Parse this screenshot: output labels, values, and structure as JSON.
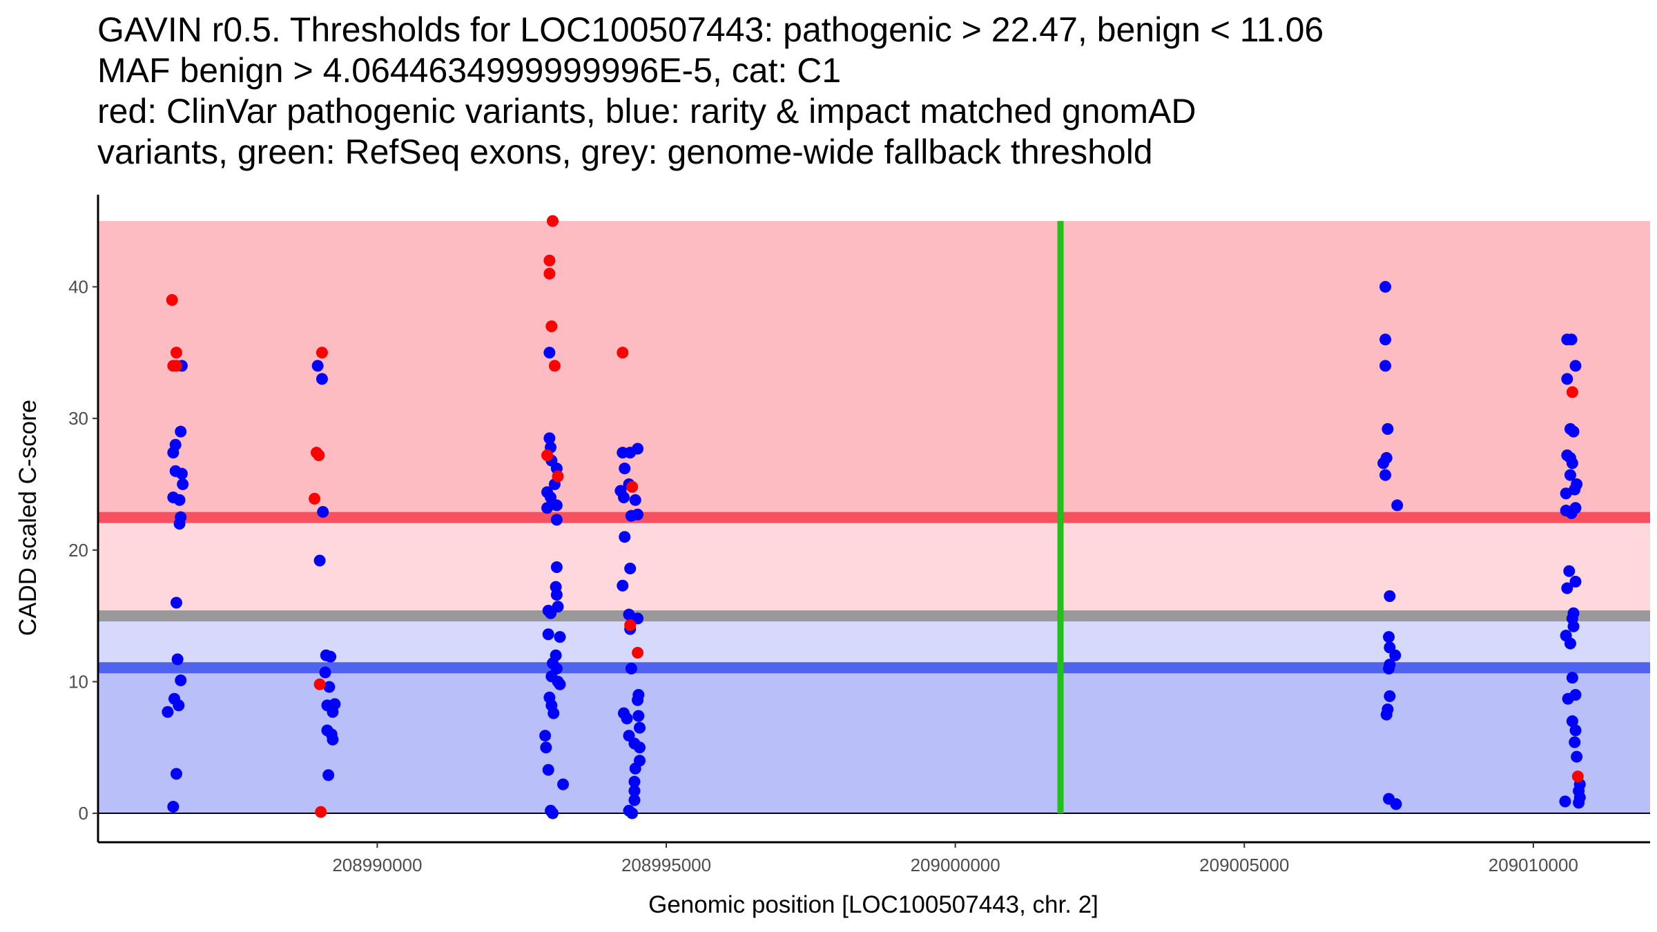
{
  "chart_data": {
    "type": "scatter",
    "title_lines": [
      "GAVIN r0.5. Thresholds for LOC100507443: pathogenic > 22.47, benign < 11.06",
      "MAF benign > 4.0644634999999996E-5, cat: C1",
      "red: ClinVar pathogenic variants, blue: rarity & impact matched gnomAD",
      "variants, green: RefSeq exons, grey: genome-wide fallback threshold"
    ],
    "xlabel": "Genomic position [LOC100507443, chr. 2]",
    "ylabel": "CADD scaled C-score",
    "xlim": [
      208985170,
      209012020
    ],
    "ylim": [
      -2.2,
      47
    ],
    "xticks": [
      208990000,
      208995000,
      209000000,
      209005000,
      209010000
    ],
    "xtick_labels": [
      "208990000",
      "208995000",
      "209000000",
      "209005000",
      "209010000"
    ],
    "yticks": [
      0,
      10,
      20,
      30,
      40
    ],
    "ytick_labels": [
      "0",
      "10",
      "20",
      "30",
      "40"
    ],
    "thresholds": {
      "pathogenic": 22.47,
      "benign": 11.06,
      "genome_wide": 15,
      "max": 45
    },
    "exon_positions": [
      209001820
    ],
    "colors": {
      "pathogenic_band": "#fcbcc1",
      "mid_pathogenic_band": "#fed8dc",
      "mid_benign_band": "#d6d9fc",
      "benign_band": "#b9bff9",
      "pathogenic_line": "#f6515f",
      "benign_line": "#4f63ee",
      "genome_line": "#999999",
      "exon": "#22c01a",
      "clinvar": "#ff0000",
      "gnomad": "#0000ff"
    },
    "series": [
      {
        "name": "gnomAD",
        "color": "#0000ff",
        "points": [
          [
            208986620,
            34
          ],
          [
            208986600,
            29
          ],
          [
            208986510,
            28
          ],
          [
            208986470,
            27.4
          ],
          [
            208986510,
            26
          ],
          [
            208986620,
            25.8
          ],
          [
            208986635,
            25
          ],
          [
            208986470,
            24
          ],
          [
            208986580,
            23.8
          ],
          [
            208986600,
            22.5
          ],
          [
            208986580,
            22
          ],
          [
            208986525,
            16
          ],
          [
            208986545,
            11.7
          ],
          [
            208986600,
            10.1
          ],
          [
            208986490,
            8.7
          ],
          [
            208986565,
            8.2
          ],
          [
            208986375,
            7.7
          ],
          [
            208986525,
            3
          ],
          [
            208986470,
            0.5
          ],
          [
            208988970,
            34
          ],
          [
            208989045,
            33
          ],
          [
            208989060,
            22.9
          ],
          [
            208989005,
            19.2
          ],
          [
            208989115,
            12
          ],
          [
            208989190,
            11.9
          ],
          [
            208989100,
            10.7
          ],
          [
            208989170,
            9.6
          ],
          [
            208989135,
            8.2
          ],
          [
            208989265,
            8.3
          ],
          [
            208989230,
            7.7
          ],
          [
            208989135,
            6.3
          ],
          [
            208989210,
            6.0
          ],
          [
            208989230,
            5.6
          ],
          [
            208989155,
            2.9
          ],
          [
            208992980,
            35
          ],
          [
            208992980,
            28.5
          ],
          [
            208993000,
            27.8
          ],
          [
            208993015,
            26.8
          ],
          [
            208993105,
            26.2
          ],
          [
            208993070,
            25
          ],
          [
            208992940,
            24.4
          ],
          [
            208993000,
            24
          ],
          [
            208993105,
            23.4
          ],
          [
            208992940,
            23.2
          ],
          [
            208993105,
            22.3
          ],
          [
            208993105,
            18.7
          ],
          [
            208993090,
            17.2
          ],
          [
            208993105,
            16.6
          ],
          [
            208993125,
            15.7
          ],
          [
            208992960,
            15.4
          ],
          [
            208993000,
            15.2
          ],
          [
            208992960,
            13.6
          ],
          [
            208993160,
            13.4
          ],
          [
            208993090,
            12
          ],
          [
            208993035,
            11.4
          ],
          [
            208993105,
            11
          ],
          [
            208993015,
            10.4
          ],
          [
            208993125,
            10
          ],
          [
            208993160,
            9.8
          ],
          [
            208992980,
            8.8
          ],
          [
            208993015,
            8.2
          ],
          [
            208993050,
            7.6
          ],
          [
            208992905,
            5.9
          ],
          [
            208992920,
            5
          ],
          [
            208992960,
            3.3
          ],
          [
            208993215,
            2.2
          ],
          [
            208993000,
            0.2
          ],
          [
            208993035,
            0
          ],
          [
            208994245,
            27.4
          ],
          [
            208994375,
            27.4
          ],
          [
            208994505,
            27.7
          ],
          [
            208994280,
            26.2
          ],
          [
            208994355,
            25
          ],
          [
            208994210,
            24.5
          ],
          [
            208994265,
            24
          ],
          [
            208994465,
            23.8
          ],
          [
            208994505,
            22.7
          ],
          [
            208994395,
            22.6
          ],
          [
            208994280,
            21
          ],
          [
            208994375,
            18.6
          ],
          [
            208994245,
            17.3
          ],
          [
            208994355,
            15.1
          ],
          [
            208994505,
            14.8
          ],
          [
            208994375,
            14
          ],
          [
            208994395,
            11
          ],
          [
            208994520,
            9
          ],
          [
            208994505,
            8.6
          ],
          [
            208994265,
            7.6
          ],
          [
            208994520,
            7.4
          ],
          [
            208994320,
            7.2
          ],
          [
            208994540,
            6.5
          ],
          [
            208994355,
            5.9
          ],
          [
            208994450,
            5.3
          ],
          [
            208994540,
            5
          ],
          [
            208994540,
            4
          ],
          [
            208994465,
            3.4
          ],
          [
            208994450,
            2.4
          ],
          [
            208994450,
            1.7
          ],
          [
            208994450,
            1.0
          ],
          [
            208994355,
            0.2
          ],
          [
            208994410,
            0
          ],
          [
            209007440,
            40
          ],
          [
            209007440,
            36
          ],
          [
            209007440,
            34
          ],
          [
            209007480,
            29.2
          ],
          [
            209007460,
            27
          ],
          [
            209007405,
            26.6
          ],
          [
            209007440,
            25.7
          ],
          [
            209007645,
            23.4
          ],
          [
            209007515,
            16.5
          ],
          [
            209007500,
            13.4
          ],
          [
            209007515,
            12.6
          ],
          [
            209007610,
            12
          ],
          [
            209007515,
            11.3
          ],
          [
            209007500,
            11
          ],
          [
            209007515,
            8.9
          ],
          [
            209007480,
            7.9
          ],
          [
            209007460,
            7.5
          ],
          [
            209007500,
            1.1
          ],
          [
            209007625,
            0.7
          ],
          [
            209010585,
            36
          ],
          [
            209010660,
            36
          ],
          [
            209010730,
            34
          ],
          [
            209010585,
            33
          ],
          [
            209010640,
            29.2
          ],
          [
            209010695,
            29
          ],
          [
            209010585,
            27.2
          ],
          [
            209010640,
            27
          ],
          [
            209010675,
            26.6
          ],
          [
            209010640,
            25.7
          ],
          [
            209010750,
            25
          ],
          [
            209010715,
            24.6
          ],
          [
            209010565,
            24.3
          ],
          [
            209010730,
            23.2
          ],
          [
            209010565,
            23
          ],
          [
            209010660,
            22.8
          ],
          [
            209010620,
            18.4
          ],
          [
            209010730,
            17.6
          ],
          [
            209010585,
            17.1
          ],
          [
            209010695,
            15.2
          ],
          [
            209010675,
            14.8
          ],
          [
            209010695,
            14.2
          ],
          [
            209010565,
            13.5
          ],
          [
            209010640,
            12.9
          ],
          [
            209010675,
            10.3
          ],
          [
            209010730,
            9
          ],
          [
            209010600,
            8.7
          ],
          [
            209010675,
            7
          ],
          [
            209010730,
            6.3
          ],
          [
            209010715,
            5.4
          ],
          [
            209010750,
            4.3
          ],
          [
            209010805,
            2.2
          ],
          [
            209010785,
            1.7
          ],
          [
            209010805,
            1.2
          ],
          [
            209010550,
            0.9
          ],
          [
            209010785,
            0.8
          ]
        ]
      },
      {
        "name": "ClinVar",
        "color": "#ff0000",
        "points": [
          [
            208986450,
            39
          ],
          [
            208986525,
            35
          ],
          [
            208986470,
            34
          ],
          [
            208986525,
            34
          ],
          [
            208989045,
            35
          ],
          [
            208988950,
            27.4
          ],
          [
            208988990,
            27.2
          ],
          [
            208988915,
            23.9
          ],
          [
            208989005,
            9.8
          ],
          [
            208989025,
            0.1
          ],
          [
            208993035,
            45
          ],
          [
            208992980,
            42
          ],
          [
            208992980,
            41
          ],
          [
            208993015,
            37
          ],
          [
            208993070,
            34
          ],
          [
            208992940,
            27.2
          ],
          [
            208993125,
            25.6
          ],
          [
            208994245,
            35
          ],
          [
            208994410,
            24.8
          ],
          [
            208994375,
            14.3
          ],
          [
            208994505,
            12.2
          ],
          [
            209010675,
            32
          ],
          [
            209010770,
            2.8
          ]
        ]
      }
    ]
  }
}
